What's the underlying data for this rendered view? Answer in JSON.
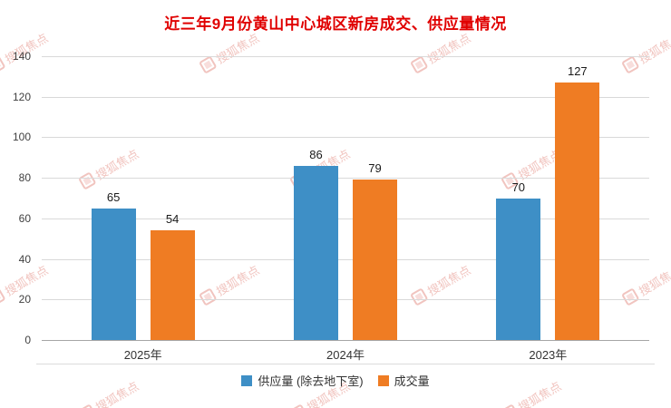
{
  "watermark": {
    "text": "搜狐焦点",
    "color": "rgba(221,107,95,0.40)"
  },
  "chart_data": {
    "type": "bar",
    "title": "近三年9月份黄山中心城区新房成交、供应量情况",
    "title_color": "#e00000",
    "categories": [
      "2025年",
      "2024年",
      "2023年"
    ],
    "series": [
      {
        "name": "供应量 (除去地下室)",
        "color": "#3e8fc6",
        "values": [
          65,
          86,
          70
        ]
      },
      {
        "name": "成交量",
        "color": "#ef7c23",
        "values": [
          54,
          79,
          127
        ]
      }
    ],
    "ylim": [
      0,
      140
    ],
    "yticks": [
      0,
      20,
      40,
      60,
      80,
      100,
      120,
      140
    ],
    "grid": true,
    "grid_color": "#d9d9d9",
    "legend_position": "bottom",
    "xlabel": "",
    "ylabel": ""
  }
}
